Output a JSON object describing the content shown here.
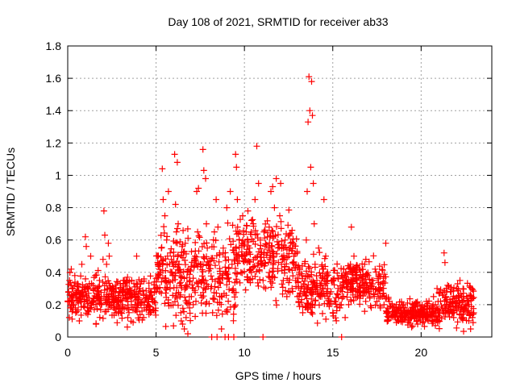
{
  "chart_data": {
    "type": "scatter",
    "title": "Day 108 of 2021, SRMTID for receiver ab33",
    "xlabel": "GPS time / hours",
    "ylabel": "SRMTID / TECUs",
    "xlim": [
      0,
      24
    ],
    "ylim": [
      0,
      1.8
    ],
    "xticks": [
      0,
      5,
      10,
      15,
      20
    ],
    "xtick_labels": [
      "0",
      "5",
      "10",
      "15",
      "20"
    ],
    "yticks": [
      0,
      0.2,
      0.4,
      0.6,
      0.8,
      1,
      1.2,
      1.4,
      1.6,
      1.8
    ],
    "ytick_labels": [
      "0",
      "0.2",
      "0.4",
      "0.6",
      "0.8",
      "1",
      "1.2",
      "1.4",
      "1.6",
      "1.8"
    ],
    "grid": true,
    "marker": "plus",
    "color": "#ff0000",
    "series": [
      {
        "name": "SRMTID",
        "points": [
          [
            0.0,
            0.22
          ],
          [
            0.05,
            0.28
          ],
          [
            0.1,
            0.35
          ],
          [
            0.15,
            0.18
          ],
          [
            0.2,
            0.42
          ],
          [
            0.25,
            0.3
          ],
          [
            0.3,
            0.25
          ],
          [
            0.35,
            0.2
          ],
          [
            0.4,
            0.38
          ],
          [
            0.45,
            0.15
          ],
          [
            0.5,
            0.27
          ],
          [
            0.55,
            0.33
          ],
          [
            0.6,
            0.21
          ],
          [
            0.7,
            0.26
          ],
          [
            0.8,
            0.45
          ],
          [
            0.9,
            0.19
          ],
          [
            1.0,
            0.62
          ],
          [
            1.05,
            0.56
          ],
          [
            1.1,
            0.3
          ],
          [
            1.2,
            0.24
          ],
          [
            1.3,
            0.5
          ],
          [
            1.4,
            0.22
          ],
          [
            1.5,
            0.17
          ],
          [
            1.6,
            0.08
          ],
          [
            1.7,
            0.28
          ],
          [
            1.8,
            0.35
          ],
          [
            1.9,
            0.2
          ],
          [
            2.0,
            0.48
          ],
          [
            2.05,
            0.78
          ],
          [
            2.1,
            0.63
          ],
          [
            2.2,
            0.45
          ],
          [
            2.3,
            0.58
          ],
          [
            2.35,
            0.5
          ],
          [
            2.4,
            0.3
          ],
          [
            2.5,
            0.25
          ],
          [
            2.6,
            0.18
          ],
          [
            2.7,
            0.32
          ],
          [
            2.8,
            0.22
          ],
          [
            2.9,
            0.28
          ],
          [
            3.0,
            0.15
          ],
          [
            3.1,
            0.2
          ],
          [
            3.2,
            0.35
          ],
          [
            3.3,
            0.26
          ],
          [
            3.4,
            0.12
          ],
          [
            3.5,
            0.3
          ],
          [
            3.6,
            0.22
          ],
          [
            3.7,
            0.09
          ],
          [
            3.8,
            0.25
          ],
          [
            3.9,
            0.18
          ],
          [
            3.9,
            0.5
          ],
          [
            4.0,
            0.2
          ],
          [
            4.1,
            0.28
          ],
          [
            4.2,
            0.16
          ],
          [
            4.3,
            0.12
          ],
          [
            4.4,
            0.24
          ],
          [
            4.5,
            0.2
          ],
          [
            4.6,
            0.3
          ],
          [
            4.7,
            0.26
          ],
          [
            4.8,
            0.22
          ],
          [
            4.9,
            0.34
          ],
          [
            5.0,
            0.28
          ],
          [
            5.1,
            0.3
          ],
          [
            5.2,
            0.45
          ],
          [
            5.3,
            0.55
          ],
          [
            5.35,
            1.04
          ],
          [
            5.4,
            0.85
          ],
          [
            5.5,
            0.75
          ],
          [
            5.6,
            0.6
          ],
          [
            5.7,
            0.9
          ],
          [
            5.8,
            0.52
          ],
          [
            5.9,
            0.4
          ],
          [
            5.95,
            0.38
          ],
          [
            6.0,
            0.5
          ],
          [
            6.05,
            1.13
          ],
          [
            6.1,
            0.82
          ],
          [
            6.15,
            0.65
          ],
          [
            6.2,
            1.08
          ],
          [
            6.25,
            0.7
          ],
          [
            6.3,
            0.45
          ],
          [
            6.35,
            0.25
          ],
          [
            6.4,
            0.15
          ],
          [
            6.5,
            0.08
          ],
          [
            6.6,
            0.05
          ],
          [
            6.7,
            0.12
          ],
          [
            6.8,
            0.02
          ],
          [
            6.9,
            0.18
          ],
          [
            7.0,
            0.25
          ],
          [
            7.1,
            0.3
          ],
          [
            7.2,
            0.5
          ],
          [
            7.3,
            0.9
          ],
          [
            7.35,
            0.65
          ],
          [
            7.4,
            0.92
          ],
          [
            7.5,
            0.45
          ],
          [
            7.6,
            0.35
          ],
          [
            7.65,
            1.16
          ],
          [
            7.7,
            1.03
          ],
          [
            7.8,
            0.98
          ],
          [
            7.85,
            0.7
          ],
          [
            7.9,
            0.55
          ],
          [
            8.0,
            0.45
          ],
          [
            8.1,
            0.3
          ],
          [
            8.15,
            0.0
          ],
          [
            8.2,
            0.15
          ],
          [
            8.3,
            0.65
          ],
          [
            8.4,
            0.85
          ],
          [
            8.45,
            0.0
          ],
          [
            8.5,
            0.68
          ],
          [
            8.6,
            0.25
          ],
          [
            8.7,
            0.05
          ],
          [
            8.8,
            0.55
          ],
          [
            8.9,
            0.0
          ],
          [
            9.0,
            0.8
          ],
          [
            9.1,
            0.0
          ],
          [
            9.2,
            0.9
          ],
          [
            9.3,
            0.45
          ],
          [
            9.4,
            0.0
          ],
          [
            9.5,
            1.13
          ],
          [
            9.55,
            1.05
          ],
          [
            9.6,
            0.85
          ],
          [
            9.7,
            0.6
          ],
          [
            9.8,
            0.4
          ],
          [
            9.9,
            0.75
          ],
          [
            10.0,
            0.5
          ],
          [
            10.1,
            0.65
          ],
          [
            10.2,
            0.78
          ],
          [
            10.3,
            0.55
          ],
          [
            10.4,
            0.4
          ],
          [
            10.5,
            0.7
          ],
          [
            10.6,
            0.85
          ],
          [
            10.7,
            1.18
          ],
          [
            10.8,
            0.95
          ],
          [
            10.9,
            0.6
          ],
          [
            11.0,
            0.45
          ],
          [
            11.05,
            0.0
          ],
          [
            11.1,
            0.65
          ],
          [
            11.2,
            0.3
          ],
          [
            11.3,
            0.52
          ],
          [
            11.4,
            0.68
          ],
          [
            11.5,
            0.9
          ],
          [
            11.6,
            0.93
          ],
          [
            11.7,
            0.8
          ],
          [
            11.8,
            0.98
          ],
          [
            11.9,
            0.55
          ],
          [
            12.0,
            0.75
          ],
          [
            12.05,
            0.95
          ],
          [
            12.1,
            0.45
          ],
          [
            12.2,
            0.35
          ],
          [
            12.3,
            0.6
          ],
          [
            12.4,
            0.25
          ],
          [
            12.5,
            0.42
          ],
          [
            12.6,
            0.55
          ],
          [
            12.7,
            0.3
          ],
          [
            12.8,
            0.5
          ],
          [
            12.9,
            0.35
          ],
          [
            13.0,
            0.25
          ],
          [
            13.1,
            0.4
          ],
          [
            13.2,
            0.3
          ],
          [
            13.3,
            0.15
          ],
          [
            13.4,
            0.28
          ],
          [
            13.5,
            0.6
          ],
          [
            13.55,
            0.9
          ],
          [
            13.6,
            1.33
          ],
          [
            13.65,
            1.61
          ],
          [
            13.7,
            1.4
          ],
          [
            13.75,
            1.05
          ],
          [
            13.8,
            1.58
          ],
          [
            13.85,
            1.37
          ],
          [
            13.9,
            0.95
          ],
          [
            13.95,
            0.7
          ],
          [
            14.0,
            0.45
          ],
          [
            14.1,
            0.35
          ],
          [
            14.2,
            0.55
          ],
          [
            14.3,
            0.25
          ],
          [
            14.4,
            0.3
          ],
          [
            14.5,
            0.85
          ],
          [
            14.6,
            0.5
          ],
          [
            14.7,
            0.35
          ],
          [
            14.8,
            0.2
          ],
          [
            14.9,
            0.28
          ],
          [
            15.0,
            0.15
          ],
          [
            15.1,
            0.22
          ],
          [
            15.2,
            0.1
          ],
          [
            15.3,
            0.3
          ],
          [
            15.4,
            0.18
          ],
          [
            15.5,
            0.0
          ],
          [
            15.6,
            0.25
          ],
          [
            15.7,
            0.12
          ],
          [
            15.8,
            0.35
          ],
          [
            15.9,
            0.2
          ],
          [
            16.0,
            0.45
          ],
          [
            16.05,
            0.68
          ],
          [
            16.1,
            0.3
          ],
          [
            16.2,
            0.5
          ],
          [
            16.3,
            0.38
          ],
          [
            16.4,
            0.25
          ],
          [
            16.5,
            0.42
          ],
          [
            16.6,
            0.35
          ],
          [
            16.7,
            0.28
          ],
          [
            16.8,
            0.45
          ],
          [
            16.9,
            0.32
          ],
          [
            17.0,
            0.38
          ],
          [
            17.1,
            0.25
          ],
          [
            17.2,
            0.35
          ],
          [
            17.3,
            0.3
          ],
          [
            17.4,
            0.42
          ],
          [
            17.5,
            0.22
          ],
          [
            17.6,
            0.3
          ],
          [
            17.7,
            0.18
          ],
          [
            17.8,
            0.25
          ],
          [
            17.9,
            0.2
          ],
          [
            18.0,
            0.58
          ],
          [
            18.1,
            0.15
          ],
          [
            18.2,
            0.22
          ],
          [
            18.3,
            0.12
          ],
          [
            18.4,
            0.18
          ],
          [
            18.5,
            0.16
          ],
          [
            18.6,
            0.2
          ],
          [
            18.7,
            0.1
          ],
          [
            18.8,
            0.15
          ],
          [
            18.9,
            0.13
          ],
          [
            19.0,
            0.18
          ],
          [
            19.1,
            0.12
          ],
          [
            19.2,
            0.16
          ],
          [
            19.3,
            0.1
          ],
          [
            19.4,
            0.14
          ],
          [
            19.5,
            0.18
          ],
          [
            19.6,
            0.12
          ],
          [
            19.7,
            0.15
          ],
          [
            19.8,
            0.08
          ],
          [
            19.9,
            0.13
          ],
          [
            20.0,
            0.17
          ],
          [
            20.1,
            0.12
          ],
          [
            20.2,
            0.15
          ],
          [
            20.3,
            0.22
          ],
          [
            20.4,
            0.1
          ],
          [
            20.5,
            0.18
          ],
          [
            20.6,
            0.14
          ],
          [
            20.7,
            0.25
          ],
          [
            20.8,
            0.2
          ],
          [
            20.9,
            0.3
          ],
          [
            21.0,
            0.15
          ],
          [
            21.1,
            0.22
          ],
          [
            21.2,
            0.18
          ],
          [
            21.3,
            0.52
          ],
          [
            21.35,
            0.46
          ],
          [
            21.4,
            0.25
          ],
          [
            21.5,
            0.32
          ],
          [
            21.6,
            0.2
          ],
          [
            21.7,
            0.28
          ],
          [
            21.8,
            0.15
          ],
          [
            21.9,
            0.22
          ],
          [
            22.0,
            0.3
          ],
          [
            22.1,
            0.18
          ],
          [
            22.2,
            0.35
          ],
          [
            22.3,
            0.25
          ],
          [
            22.4,
            0.12
          ],
          [
            22.5,
            0.2
          ],
          [
            22.6,
            0.15
          ],
          [
            22.7,
            0.1
          ],
          [
            22.8,
            0.05
          ],
          [
            22.9,
            0.12
          ]
        ]
      }
    ],
    "dense_bands": [
      {
        "x": [
          0.0,
          5.0
        ],
        "mean": 0.24,
        "spread": 0.09
      },
      {
        "x": [
          5.0,
          9.5
        ],
        "mean": 0.38,
        "spread": 0.18
      },
      {
        "x": [
          9.5,
          13.0
        ],
        "mean": 0.5,
        "spread": 0.16
      },
      {
        "x": [
          13.0,
          15.5
        ],
        "mean": 0.3,
        "spread": 0.12
      },
      {
        "x": [
          15.5,
          18.0
        ],
        "mean": 0.33,
        "spread": 0.09
      },
      {
        "x": [
          18.0,
          21.0
        ],
        "mean": 0.15,
        "spread": 0.05
      },
      {
        "x": [
          21.0,
          23.0
        ],
        "mean": 0.2,
        "spread": 0.08
      }
    ]
  }
}
